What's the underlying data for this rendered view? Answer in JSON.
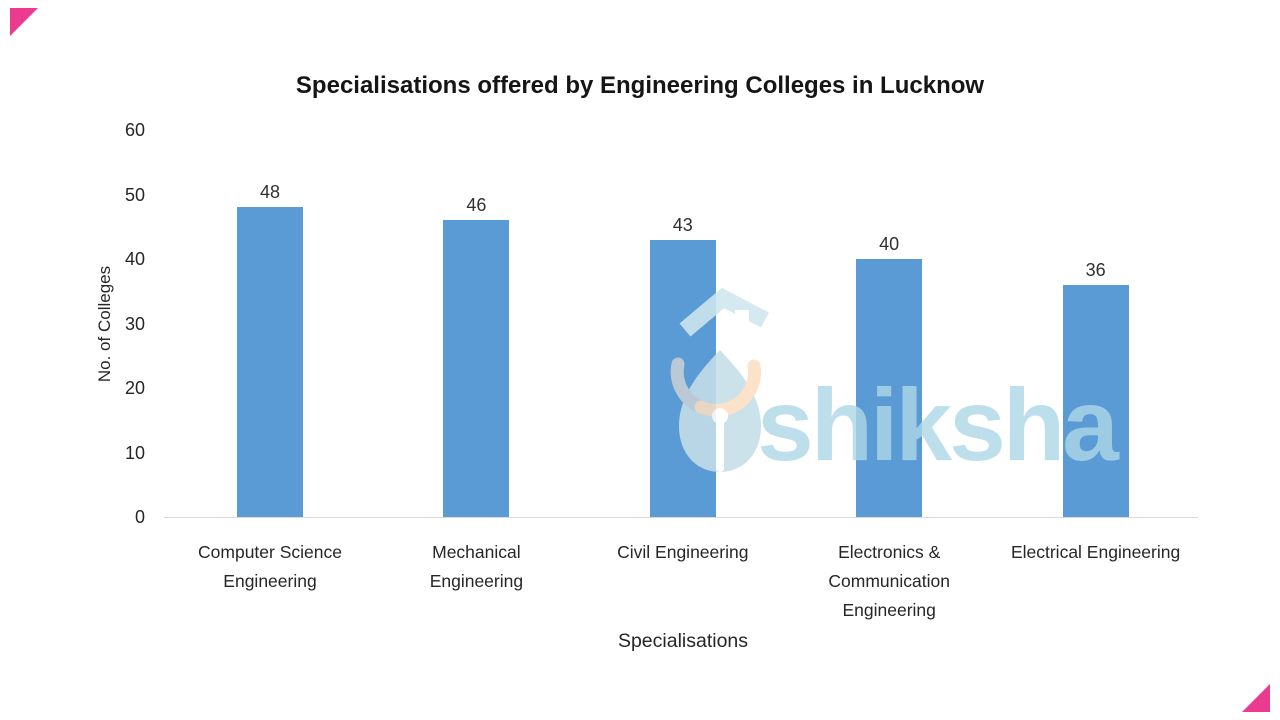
{
  "chart_data": {
    "type": "bar",
    "title": "Specialisations offered by Engineering Colleges in Lucknow",
    "categories": [
      "Computer Science Engineering",
      "Mechanical Engineering",
      "Civil Engineering",
      "Electronics & Communication Engineering",
      "Electrical Engineering"
    ],
    "values": [
      48,
      46,
      43,
      40,
      36
    ],
    "xlabel": "Specialisations",
    "ylabel": "No. of Colleges",
    "ylim": [
      0,
      60
    ],
    "yticks": [
      0,
      10,
      20,
      30,
      40,
      50,
      60
    ],
    "bar_color": "#5B9BD5",
    "axis_line_color": "#D9D9D9",
    "grid": false,
    "legend": "none",
    "data_labels_shown": true
  },
  "watermark": {
    "text": "shiksha",
    "icon": "graduation-cap-pen-icon",
    "text_color": "#BEE0EB"
  },
  "branding": {
    "corner_accent_color": "#EB3B90"
  }
}
